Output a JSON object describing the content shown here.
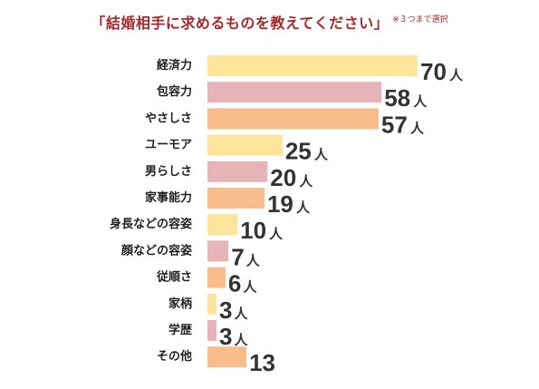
{
  "title": "「結婚相手に求めるものを教えてください」",
  "note": "※３つまで選択",
  "chart_data": {
    "type": "bar",
    "orientation": "horizontal",
    "categories": [
      "経済力",
      "包容力",
      "やさしさ",
      "ユーモア",
      "男らしさ",
      "家事能力",
      "身長などの容姿",
      "顔などの容姿",
      "従順さ",
      "家柄",
      "学歴",
      "その他"
    ],
    "values": [
      70,
      58,
      57,
      25,
      20,
      19,
      10,
      7,
      6,
      3,
      3,
      13
    ],
    "value_labels": [
      "70",
      "58",
      "57",
      "25",
      "20",
      "19",
      "10",
      "7",
      "6",
      "3",
      "3",
      "13"
    ],
    "unit_labels": [
      "人",
      "人",
      "人",
      "人",
      "人",
      "人",
      "人",
      "人",
      "人",
      "人",
      "人",
      ""
    ],
    "bar_colors": [
      "#fde49a",
      "#e6b4b8",
      "#f9bd8b",
      "#fde49a",
      "#e6b4b8",
      "#f9bd8b",
      "#fde49a",
      "#e6b4b8",
      "#f9bd8b",
      "#fde49a",
      "#e6b4b8",
      "#f9bd8b"
    ],
    "xlim": [
      0,
      70
    ],
    "grid": false,
    "legend": "none"
  }
}
